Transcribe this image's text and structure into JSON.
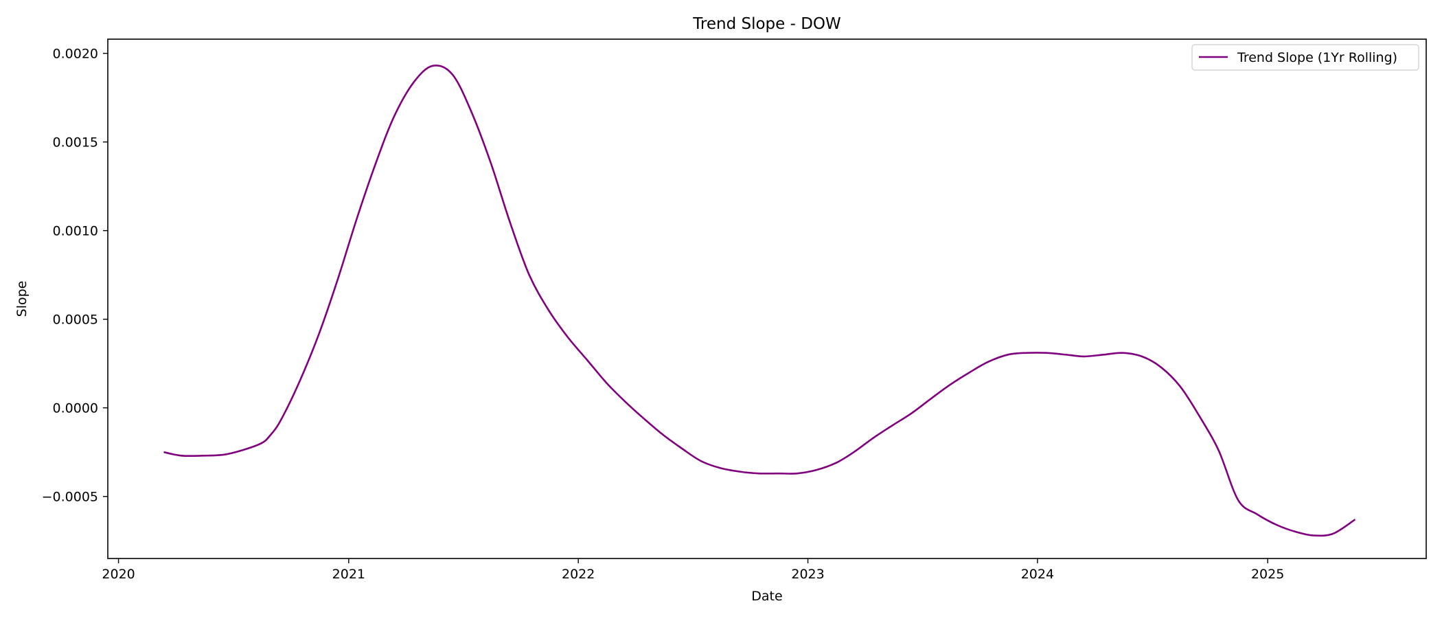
{
  "chart_data": {
    "type": "line",
    "title": "Trend Slope - DOW",
    "xlabel": "Date",
    "ylabel": "Slope",
    "xlim": [
      "2019-12-15",
      "2025-09-10"
    ],
    "ylim": [
      -0.00085,
      0.00208
    ],
    "x_ticks": [
      {
        "date": "2020-01-01",
        "label": "2020"
      },
      {
        "date": "2021-01-01",
        "label": "2021"
      },
      {
        "date": "2022-01-01",
        "label": "2022"
      },
      {
        "date": "2023-01-01",
        "label": "2023"
      },
      {
        "date": "2024-01-01",
        "label": "2024"
      },
      {
        "date": "2025-01-01",
        "label": "2025"
      }
    ],
    "y_ticks": [
      {
        "value": -0.0005,
        "label": "−0.0005"
      },
      {
        "value": 0.0,
        "label": "0.0000"
      },
      {
        "value": 0.0005,
        "label": "0.0005"
      },
      {
        "value": 0.001,
        "label": "0.0010"
      },
      {
        "value": 0.0015,
        "label": "0.0015"
      },
      {
        "value": 0.002,
        "label": "0.0020"
      }
    ],
    "grid": false,
    "legend_position": "top-right",
    "series": [
      {
        "name": "Trend Slope (1Yr Rolling)",
        "color": "#800080",
        "x": [
          "2020-03-13",
          "2020-04-10",
          "2020-05-15",
          "2020-06-15",
          "2020-07-15",
          "2020-08-15",
          "2020-08-28",
          "2020-09-15",
          "2020-10-15",
          "2020-11-15",
          "2020-12-15",
          "2021-01-15",
          "2021-02-15",
          "2021-03-15",
          "2021-04-15",
          "2021-05-15",
          "2021-06-15",
          "2021-07-15",
          "2021-08-15",
          "2021-09-15",
          "2021-10-15",
          "2021-11-15",
          "2021-12-15",
          "2022-01-15",
          "2022-02-15",
          "2022-03-15",
          "2022-04-15",
          "2022-05-15",
          "2022-06-15",
          "2022-07-15",
          "2022-08-15",
          "2022-09-15",
          "2022-10-15",
          "2022-11-15",
          "2022-12-15",
          "2023-01-15",
          "2023-02-15",
          "2023-03-15",
          "2023-04-15",
          "2023-05-15",
          "2023-06-15",
          "2023-07-15",
          "2023-08-15",
          "2023-09-15",
          "2023-10-15",
          "2023-11-15",
          "2023-12-15",
          "2024-01-15",
          "2024-02-15",
          "2024-03-15",
          "2024-04-15",
          "2024-05-15",
          "2024-06-15",
          "2024-07-15",
          "2024-08-15",
          "2024-09-15",
          "2024-10-15",
          "2024-11-15",
          "2024-12-15",
          "2025-01-15",
          "2025-02-15",
          "2025-03-15",
          "2025-04-15",
          "2025-05-20"
        ],
        "values": [
          -0.00025,
          -0.00027,
          -0.00027,
          -0.000265,
          -0.00024,
          -0.0002,
          -0.00016,
          -7e-05,
          0.00015,
          0.00042,
          0.00073,
          0.00108,
          0.0014,
          0.00165,
          0.00184,
          0.00193,
          0.00188,
          0.00167,
          0.00138,
          0.00104,
          0.00075,
          0.00055,
          0.0004,
          0.00027,
          0.00014,
          4e-05,
          -6e-05,
          -0.00015,
          -0.00023,
          -0.0003,
          -0.00034,
          -0.00036,
          -0.00037,
          -0.00037,
          -0.00037,
          -0.00035,
          -0.00031,
          -0.00025,
          -0.00017,
          -0.0001,
          -3e-05,
          5e-05,
          0.00013,
          0.0002,
          0.00026,
          0.0003,
          0.00031,
          0.00031,
          0.0003,
          0.00029,
          0.0003,
          0.00031,
          0.00029,
          0.00023,
          0.00012,
          -5e-05,
          -0.00024,
          -0.00052,
          -0.0006,
          -0.00066,
          -0.0007,
          -0.00072,
          -0.00071,
          -0.00063
        ]
      }
    ]
  }
}
